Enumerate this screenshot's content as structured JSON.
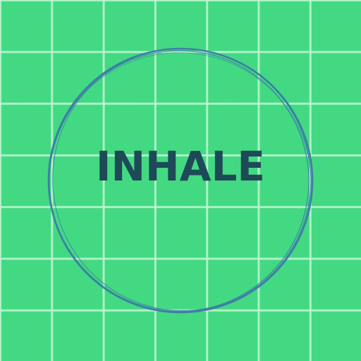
{
  "word": "INHALE",
  "colors": {
    "background": "#43d982",
    "grid_lines": "#bef6d1",
    "ring": "#3d7fa6",
    "text": "#1e4a57"
  },
  "icons": {
    "ring": "hand-drawn-circle"
  }
}
